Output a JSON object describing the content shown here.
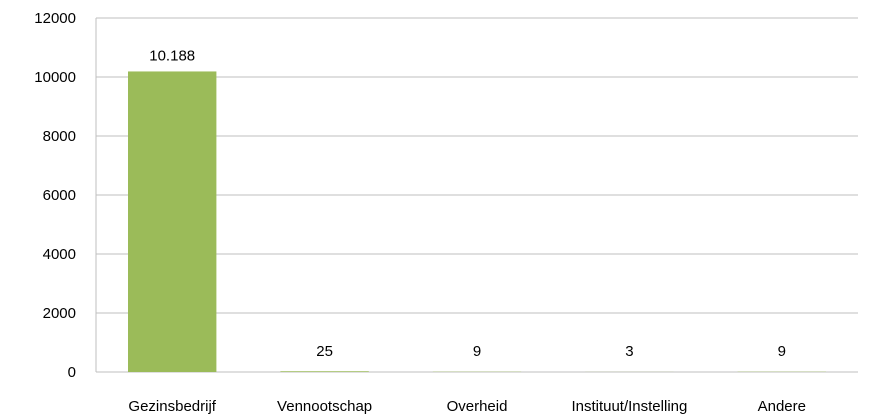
{
  "chart_data": {
    "type": "bar",
    "title": "",
    "xlabel": "",
    "ylabel": "",
    "categories": [
      "Gezinsbedrijf",
      "Vennootschap",
      "Overheid",
      "Instituut/Instelling",
      "Andere"
    ],
    "values": [
      10188,
      25,
      9,
      3,
      9
    ],
    "data_labels": [
      "10.188",
      "25",
      "9",
      "3",
      "9"
    ],
    "ylim": [
      0,
      12000
    ],
    "yticks": [
      0,
      2000,
      4000,
      6000,
      8000,
      10000,
      12000
    ],
    "grid": true,
    "legend": "none",
    "bar_color": "#9bbb59",
    "gridline_color": "#bfbfbf"
  }
}
